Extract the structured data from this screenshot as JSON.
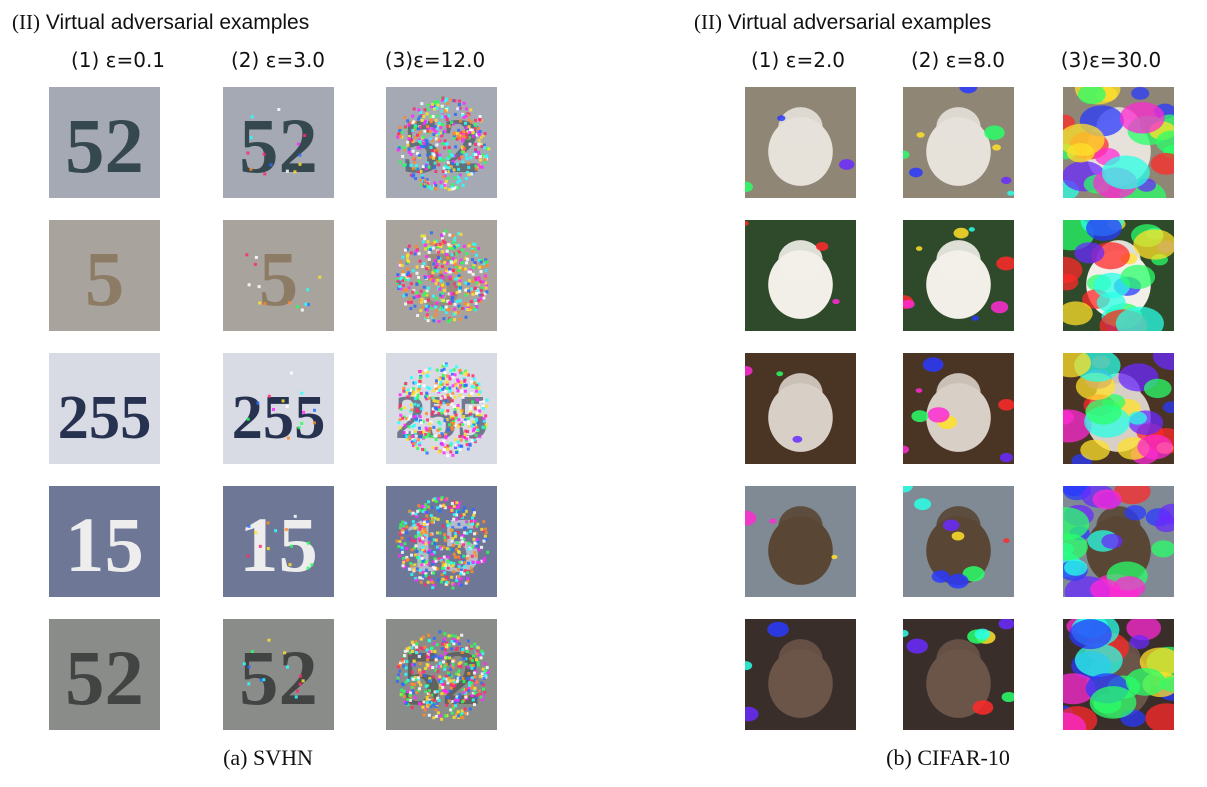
{
  "panels": {
    "svhn": {
      "heading_prefix": "(II)",
      "heading_rest": " Virtual adversarial examples",
      "columns": [
        "(1) ε=0.1",
        "(2) ε=3.0",
        "(3)ε=12.0"
      ],
      "caption": "(a) SVHN",
      "rows": [
        {
          "digits": "52",
          "bg": "#a4a9b4",
          "fg": "#30434a"
        },
        {
          "digits": "5",
          "bg": "#a9a39e",
          "fg": "#8c7a62"
        },
        {
          "digits": "255",
          "bg": "#d9dbe4",
          "fg": "#1e2a4a"
        },
        {
          "digits": "15",
          "bg": "#6f7796",
          "fg": "#f4f4f2"
        },
        {
          "digits": "52",
          "bg": "#8a8c8a",
          "fg": "#3f4140"
        }
      ]
    },
    "cifar": {
      "heading_prefix": "(II)",
      "heading_rest": " Virtual adversarial examples",
      "columns": [
        "(1) ε=2.0",
        "(2) ε=8.0",
        "(3)ε=30.0"
      ],
      "caption": "(b) CIFAR-10",
      "rows": [
        {
          "bg": "#8f8676",
          "fg": "#e6e2da"
        },
        {
          "bg": "#2f4a2a",
          "fg": "#f2efe9"
        },
        {
          "bg": "#4a3424",
          "fg": "#d8cfc6"
        },
        {
          "bg": "#7f8a94",
          "fg": "#5a4634"
        },
        {
          "bg": "#3a2e2a",
          "fg": "#6b5448"
        }
      ]
    }
  }
}
